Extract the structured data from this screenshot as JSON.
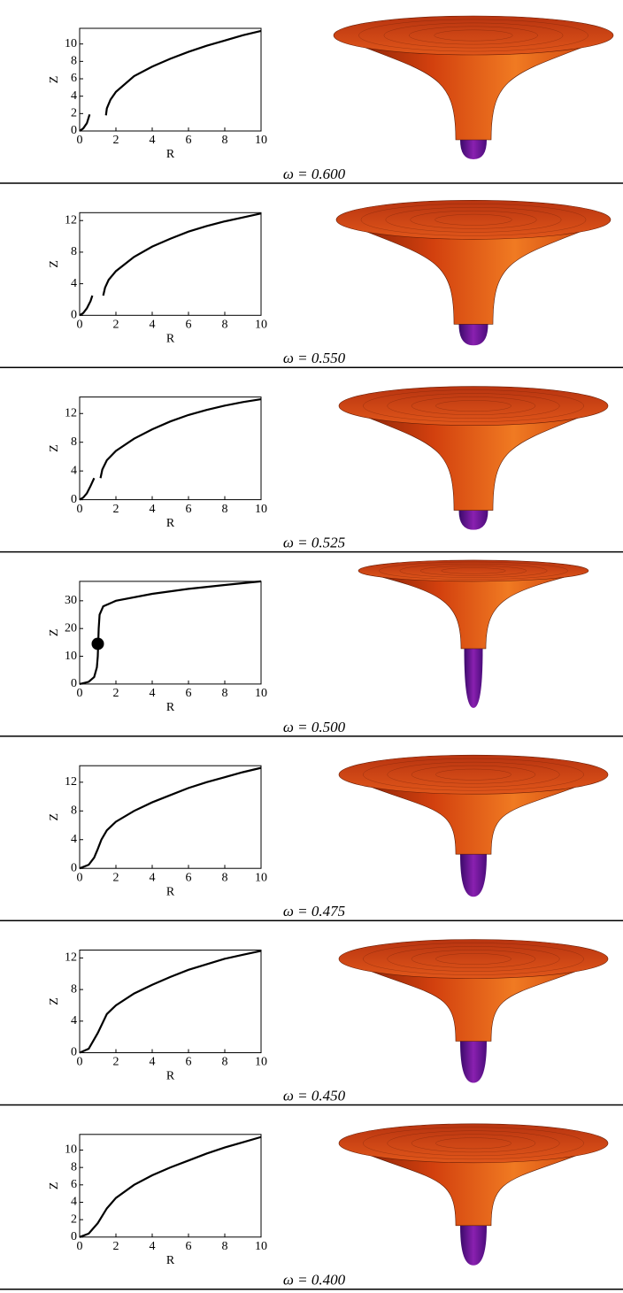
{
  "chart_data": [
    {
      "type": "line",
      "caption": "ω = 0.600",
      "xlabel": "R",
      "ylabel": "Z",
      "color": "#000000",
      "xlim": [
        0,
        10
      ],
      "xticks": [
        0,
        2,
        4,
        6,
        8,
        10
      ],
      "ylim": [
        0,
        11.8
      ],
      "yticks": [
        0,
        2,
        4,
        6,
        8,
        10
      ],
      "x": [
        0,
        0.2,
        0.4,
        0.55,
        1.0,
        1.45,
        1.5,
        1.7,
        2,
        3,
        4,
        5,
        6,
        7,
        8,
        9,
        10
      ],
      "values": [
        0,
        0.3,
        0.9,
        1.9,
        null,
        1.8,
        2.6,
        3.6,
        4.5,
        6.3,
        7.4,
        8.3,
        9.1,
        9.8,
        10.4,
        11.0,
        11.5
      ]
    },
    {
      "type": "line",
      "caption": "ω = 0.550",
      "xlabel": "R",
      "ylabel": "Z",
      "color": "#000000",
      "xlim": [
        0,
        10
      ],
      "xticks": [
        0,
        2,
        4,
        6,
        8,
        10
      ],
      "ylim": [
        0,
        13
      ],
      "yticks": [
        0,
        4,
        8,
        12
      ],
      "x": [
        0,
        0.2,
        0.4,
        0.6,
        0.7,
        1.0,
        1.3,
        1.4,
        1.6,
        2,
        3,
        4,
        5,
        6,
        7,
        8,
        9,
        10
      ],
      "values": [
        0,
        0.3,
        0.9,
        1.8,
        2.5,
        null,
        2.5,
        3.5,
        4.5,
        5.6,
        7.4,
        8.7,
        9.7,
        10.6,
        11.3,
        11.9,
        12.4,
        12.9
      ]
    },
    {
      "type": "line",
      "caption": "ω = 0.525",
      "xlabel": "R",
      "ylabel": "Z",
      "color": "#000000",
      "xlim": [
        0,
        10
      ],
      "xticks": [
        0,
        2,
        4,
        6,
        8,
        10
      ],
      "ylim": [
        0,
        14.3
      ],
      "yticks": [
        0,
        4,
        8,
        12
      ],
      "x": [
        0,
        0.2,
        0.4,
        0.6,
        0.8,
        1.0,
        1.15,
        1.25,
        1.5,
        2,
        3,
        4,
        5,
        6,
        7,
        8,
        9,
        10
      ],
      "values": [
        0,
        0.3,
        0.9,
        1.9,
        3.0,
        null,
        3.0,
        4.2,
        5.5,
        6.8,
        8.5,
        9.8,
        10.9,
        11.8,
        12.5,
        13.1,
        13.6,
        14.0
      ]
    },
    {
      "type": "line",
      "caption": "ω = 0.500",
      "xlabel": "R",
      "ylabel": "Z",
      "color": "#000000",
      "xlim": [
        0,
        10
      ],
      "xticks": [
        0,
        2,
        4,
        6,
        8,
        10
      ],
      "ylim": [
        0,
        37
      ],
      "yticks": [
        0,
        10,
        20,
        30
      ],
      "x": [
        0,
        0.5,
        0.8,
        0.95,
        1.0,
        1.05,
        1.1,
        1.3,
        2,
        4,
        6,
        8,
        10
      ],
      "values": [
        0,
        0.8,
        2.5,
        6,
        10,
        20,
        25,
        28,
        30,
        32.5,
        34.3,
        35.7,
        37
      ],
      "marker": {
        "x": 1,
        "y": 14.5
      }
    },
    {
      "type": "line",
      "caption": "ω = 0.475",
      "xlabel": "R",
      "ylabel": "Z",
      "color": "#000000",
      "xlim": [
        0,
        10
      ],
      "xticks": [
        0,
        2,
        4,
        6,
        8,
        10
      ],
      "ylim": [
        0,
        14.3
      ],
      "yticks": [
        0,
        4,
        8,
        12
      ],
      "x": [
        0,
        0.5,
        0.8,
        1,
        1.2,
        1.5,
        2,
        3,
        4,
        5,
        6,
        7,
        8,
        9,
        10
      ],
      "values": [
        0,
        0.5,
        1.5,
        2.7,
        4,
        5.3,
        6.5,
        8,
        9.2,
        10.2,
        11.2,
        12,
        12.7,
        13.4,
        14
      ]
    },
    {
      "type": "line",
      "caption": "ω = 0.450",
      "xlabel": "R",
      "ylabel": "Z",
      "color": "#000000",
      "xlim": [
        0,
        10
      ],
      "xticks": [
        0,
        2,
        4,
        6,
        8,
        10
      ],
      "ylim": [
        0,
        13
      ],
      "yticks": [
        0,
        4,
        8,
        12
      ],
      "x": [
        0,
        0.5,
        1,
        1.5,
        2,
        3,
        4,
        5,
        6,
        7,
        8,
        9,
        10
      ],
      "values": [
        0,
        0.5,
        2.5,
        4.9,
        6,
        7.5,
        8.6,
        9.6,
        10.5,
        11.2,
        11.9,
        12.4,
        12.9
      ]
    },
    {
      "type": "line",
      "caption": "ω = 0.400",
      "xlabel": "R",
      "ylabel": "Z",
      "color": "#000000",
      "xlim": [
        0,
        10
      ],
      "xticks": [
        0,
        2,
        4,
        6,
        8,
        10
      ],
      "ylim": [
        0,
        11.8
      ],
      "yticks": [
        0,
        2,
        4,
        6,
        8,
        10
      ],
      "x": [
        0,
        0.5,
        1,
        1.5,
        2,
        3,
        4,
        5,
        6,
        7,
        8,
        9,
        10
      ],
      "values": [
        0,
        0.4,
        1.6,
        3.3,
        4.5,
        6,
        7.1,
        8,
        8.8,
        9.6,
        10.3,
        10.9,
        11.5
      ]
    }
  ]
}
